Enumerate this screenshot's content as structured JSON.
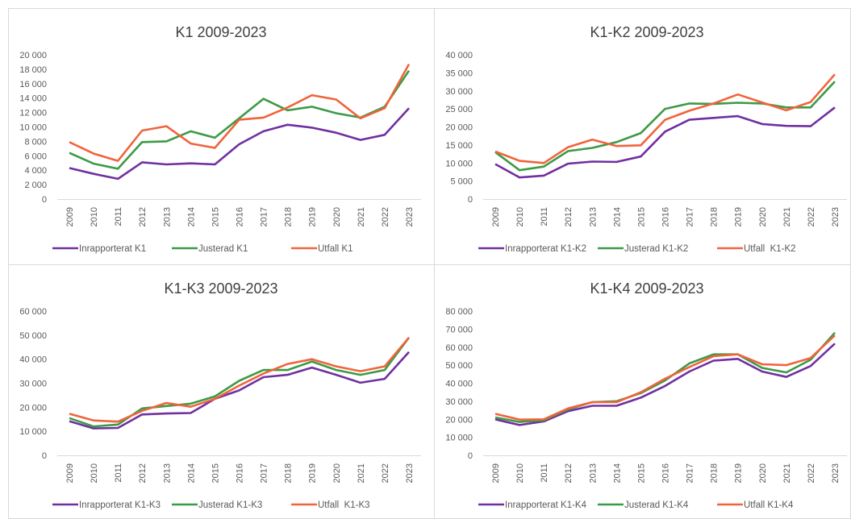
{
  "chart_data": [
    {
      "type": "line",
      "title": "K1 2009-2023",
      "categories": [
        "2009",
        "2010",
        "2011",
        "2012",
        "2013",
        "2014",
        "2015",
        "2016",
        "2017",
        "2018",
        "2019",
        "2020",
        "2021",
        "2022",
        "2023"
      ],
      "ylim": [
        0,
        20000
      ],
      "yticks": [
        0,
        {
          "value": 2000,
          "label": "2 000"
        },
        {
          "value": 4000,
          "label": "4 000"
        },
        {
          "value": 6000,
          "label": "6 000"
        },
        {
          "value": 8000,
          "label": "8 000"
        },
        {
          "value": 10000,
          "label": "10 000"
        },
        {
          "value": 12000,
          "label": "12 000"
        },
        {
          "value": 14000,
          "label": "14 000"
        },
        {
          "value": 16000,
          "label": "16 000"
        },
        {
          "value": 18000,
          "label": "18 000"
        },
        {
          "value": 20000,
          "label": "20 000"
        }
      ],
      "grid": false,
      "series": [
        {
          "name": "Inrapporterat K1",
          "color": "#7030a0",
          "values": [
            4300,
            3500,
            2800,
            5100,
            4800,
            4950,
            4800,
            7600,
            9400,
            10300,
            9900,
            9200,
            8200,
            8900,
            12600
          ]
        },
        {
          "name": "Justerad K1",
          "color": "#3c9a46",
          "values": [
            6400,
            4900,
            4200,
            7900,
            8000,
            9400,
            8500,
            11200,
            13900,
            12300,
            12800,
            11900,
            11300,
            12800,
            17800
          ]
        },
        {
          "name": "Utfall K1",
          "color": "#f0643c",
          "values": [
            7900,
            6300,
            5300,
            9500,
            10100,
            7700,
            7100,
            11000,
            11300,
            12700,
            14400,
            13800,
            11200,
            12600,
            18700
          ]
        }
      ]
    },
    {
      "type": "line",
      "title": "K1-K2 2009-2023",
      "categories": [
        "2009",
        "2010",
        "2011",
        "2012",
        "2013",
        "2014",
        "2015",
        "2016",
        "2017",
        "2018",
        "2019",
        "2020",
        "2021",
        "2022",
        "2023"
      ],
      "ylim": [
        0,
        40000
      ],
      "yticks": [
        0,
        {
          "value": 5000,
          "label": "5 000"
        },
        {
          "value": 10000,
          "label": "10 000"
        },
        {
          "value": 15000,
          "label": "15 000"
        },
        {
          "value": 20000,
          "label": "20 000"
        },
        {
          "value": 25000,
          "label": "25 000"
        },
        {
          "value": 30000,
          "label": "30 000"
        },
        {
          "value": 35000,
          "label": "35 000"
        },
        {
          "value": 40000,
          "label": "40 000"
        }
      ],
      "grid": false,
      "series": [
        {
          "name": "Inrapporterat K1-K2",
          "color": "#7030a0",
          "values": [
            9700,
            6000,
            6500,
            9800,
            10400,
            10300,
            11800,
            18700,
            22000,
            22500,
            23000,
            20800,
            20300,
            20200,
            25400
          ]
        },
        {
          "name": "Justerad K1-K2",
          "color": "#3c9a46",
          "values": [
            13000,
            8000,
            9000,
            13300,
            14200,
            15800,
            18300,
            25000,
            26500,
            26400,
            26700,
            26500,
            25400,
            25400,
            32600
          ]
        },
        {
          "name": "Utfall  K1-K2",
          "color": "#f0643c",
          "values": [
            13200,
            10600,
            10000,
            14400,
            16500,
            14700,
            14900,
            22000,
            24500,
            26500,
            29000,
            26800,
            24600,
            26900,
            34600
          ]
        }
      ]
    },
    {
      "type": "line",
      "title": "K1-K3 2009-2023",
      "categories": [
        "2009",
        "2010",
        "2011",
        "2012",
        "2013",
        "2014",
        "2015",
        "2016",
        "2017",
        "2018",
        "2019",
        "2020",
        "2021",
        "2022",
        "2023"
      ],
      "ylim": [
        0,
        60000
      ],
      "yticks": [
        0,
        {
          "value": 10000,
          "label": "10 000"
        },
        {
          "value": 20000,
          "label": "20 000"
        },
        {
          "value": 30000,
          "label": "30 000"
        },
        {
          "value": 40000,
          "label": "40 000"
        },
        {
          "value": 50000,
          "label": "50 000"
        },
        {
          "value": 60000,
          "label": "60 000"
        }
      ],
      "grid": false,
      "series": [
        {
          "name": "Inrapporterat K1-K3",
          "color": "#7030a0",
          "values": [
            14200,
            11200,
            11400,
            17000,
            17400,
            17600,
            23500,
            27000,
            32500,
            33500,
            36500,
            33500,
            30200,
            31800,
            43000
          ]
        },
        {
          "name": "Justerad K1-K3",
          "color": "#3c9a46",
          "values": [
            15500,
            12000,
            12800,
            19500,
            20500,
            21500,
            24500,
            31000,
            35500,
            35500,
            39000,
            35500,
            33500,
            35500,
            49000
          ]
        },
        {
          "name": "Utfall  K1-K3",
          "color": "#f0643c",
          "values": [
            17300,
            14500,
            14000,
            18500,
            21800,
            20200,
            23500,
            29000,
            34000,
            38000,
            40000,
            37000,
            35000,
            37000,
            49000
          ]
        }
      ]
    },
    {
      "type": "line",
      "title": "K1-K4 2009-2023",
      "categories": [
        "2009",
        "2010",
        "2011",
        "2012",
        "2013",
        "2014",
        "2015",
        "2016",
        "2017",
        "2018",
        "2019",
        "2020",
        "2021",
        "2022",
        "2023"
      ],
      "ylim": [
        0,
        80000
      ],
      "yticks": [
        0,
        {
          "value": 10000,
          "label": "10 000"
        },
        {
          "value": 20000,
          "label": "20 000"
        },
        {
          "value": 30000,
          "label": "30 000"
        },
        {
          "value": 40000,
          "label": "40 000"
        },
        {
          "value": 50000,
          "label": "50 000"
        },
        {
          "value": 60000,
          "label": "60 000"
        },
        {
          "value": 70000,
          "label": "70 000"
        },
        {
          "value": 80000,
          "label": "80 000"
        }
      ],
      "grid": false,
      "series": [
        {
          "name": "Inrapporterat K1-K4",
          "color": "#7030a0",
          "values": [
            20000,
            16800,
            18800,
            24500,
            27500,
            27500,
            32000,
            38500,
            46500,
            52500,
            53500,
            46500,
            43500,
            49500,
            62000
          ]
        },
        {
          "name": "Justerad K1-K4",
          "color": "#3c9a46",
          "values": [
            21000,
            18500,
            19500,
            25500,
            29500,
            30000,
            34500,
            41500,
            51000,
            56000,
            56000,
            48500,
            46000,
            53000,
            68000
          ]
        },
        {
          "name": "Utfall K1-K4",
          "color": "#f0643c",
          "values": [
            23000,
            19800,
            20000,
            26000,
            29500,
            29500,
            35000,
            42500,
            49000,
            55000,
            56000,
            50500,
            50000,
            54000,
            66500
          ]
        }
      ]
    }
  ]
}
